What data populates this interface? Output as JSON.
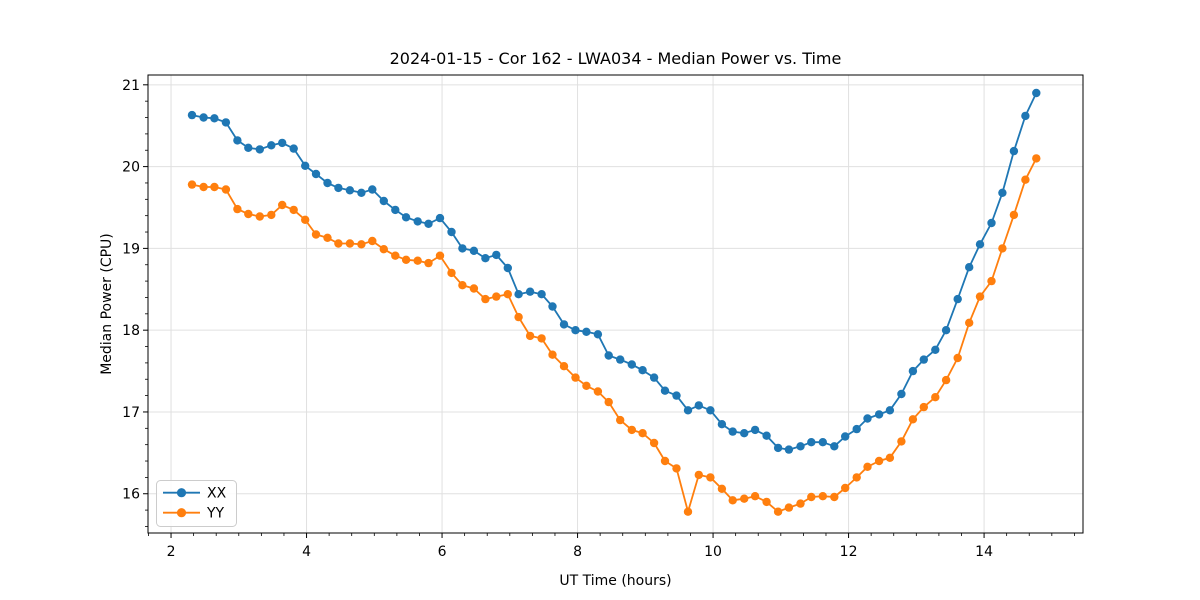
{
  "figure": {
    "background": "#ffffff",
    "text_color": "#000000",
    "grid_color": "#e0e0e0",
    "spine_color": "#000000",
    "legend_border_color": "#cccccc",
    "legend_background": "rgba(255,255,255,0.85)"
  },
  "chart_data": {
    "type": "line",
    "title": "2024-01-15 - Cor 162 - LWA034 - Median Power vs. Time",
    "xlabel": "UT Time (hours)",
    "ylabel": "Median Power (CPU)",
    "xlim": [
      1.66,
      15.46
    ],
    "ylim": [
      15.52,
      21.12
    ],
    "x_major_ticks": [
      2,
      4,
      6,
      8,
      10,
      12,
      14
    ],
    "y_major_ticks": [
      16,
      17,
      18,
      19,
      20,
      21
    ],
    "x_minor_step": 0.33333,
    "y_minor_step": 0.2,
    "grid": true,
    "legend_position": "lower-left",
    "marker": "circle",
    "x": [
      2.31,
      2.48,
      2.64,
      2.81,
      2.98,
      3.14,
      3.31,
      3.48,
      3.64,
      3.81,
      3.98,
      4.14,
      4.31,
      4.47,
      4.64,
      4.81,
      4.97,
      5.14,
      5.31,
      5.47,
      5.64,
      5.8,
      5.97,
      6.14,
      6.3,
      6.47,
      6.64,
      6.8,
      6.97,
      7.13,
      7.3,
      7.47,
      7.63,
      7.8,
      7.97,
      8.13,
      8.3,
      8.46,
      8.63,
      8.8,
      8.96,
      9.13,
      9.29,
      9.46,
      9.63,
      9.79,
      9.96,
      10.13,
      10.29,
      10.46,
      10.62,
      10.79,
      10.96,
      11.12,
      11.29,
      11.45,
      11.62,
      11.79,
      11.95,
      12.12,
      12.28,
      12.45,
      12.61,
      12.78,
      12.95,
      13.11,
      13.28,
      13.44,
      13.61,
      13.78,
      13.94,
      14.11,
      14.27,
      14.44,
      14.61,
      14.77
    ],
    "series": [
      {
        "name": "XX",
        "color": "#1f77b4",
        "values": [
          20.63,
          20.6,
          20.59,
          20.54,
          20.32,
          20.23,
          20.21,
          20.26,
          20.29,
          20.22,
          20.01,
          19.91,
          19.8,
          19.74,
          19.71,
          19.68,
          19.72,
          19.58,
          19.47,
          19.38,
          19.33,
          19.3,
          19.37,
          19.2,
          19.0,
          18.97,
          18.88,
          18.92,
          18.76,
          18.44,
          18.47,
          18.44,
          18.29,
          18.07,
          18.0,
          17.98,
          17.95,
          17.69,
          17.64,
          17.58,
          17.51,
          17.42,
          17.26,
          17.2,
          17.02,
          17.08,
          17.02,
          16.85,
          16.76,
          16.74,
          16.78,
          16.71,
          16.56,
          16.54,
          16.58,
          16.63,
          16.63,
          16.58,
          16.7,
          16.79,
          16.92,
          16.97,
          17.02,
          17.22,
          17.5,
          17.64,
          17.76,
          18.0,
          18.38,
          18.77,
          19.05,
          19.31,
          19.68,
          20.19,
          20.62,
          20.9
        ]
      },
      {
        "name": "YY",
        "color": "#ff7f0e",
        "values": [
          19.78,
          19.75,
          19.75,
          19.72,
          19.48,
          19.42,
          19.39,
          19.41,
          19.53,
          19.47,
          19.35,
          19.17,
          19.13,
          19.06,
          19.06,
          19.05,
          19.09,
          18.99,
          18.91,
          18.86,
          18.85,
          18.82,
          18.91,
          18.7,
          18.55,
          18.51,
          18.38,
          18.41,
          18.44,
          18.16,
          17.93,
          17.9,
          17.7,
          17.56,
          17.42,
          17.32,
          17.25,
          17.12,
          16.9,
          16.78,
          16.74,
          16.62,
          16.4,
          16.31,
          15.78,
          16.23,
          16.2,
          16.06,
          15.92,
          15.94,
          15.97,
          15.9,
          15.78,
          15.83,
          15.88,
          15.96,
          15.97,
          15.96,
          16.07,
          16.2,
          16.33,
          16.4,
          16.44,
          16.64,
          16.91,
          17.06,
          17.18,
          17.39,
          17.66,
          18.09,
          18.41,
          18.6,
          19.0,
          19.41,
          19.84,
          20.1
        ]
      }
    ]
  }
}
